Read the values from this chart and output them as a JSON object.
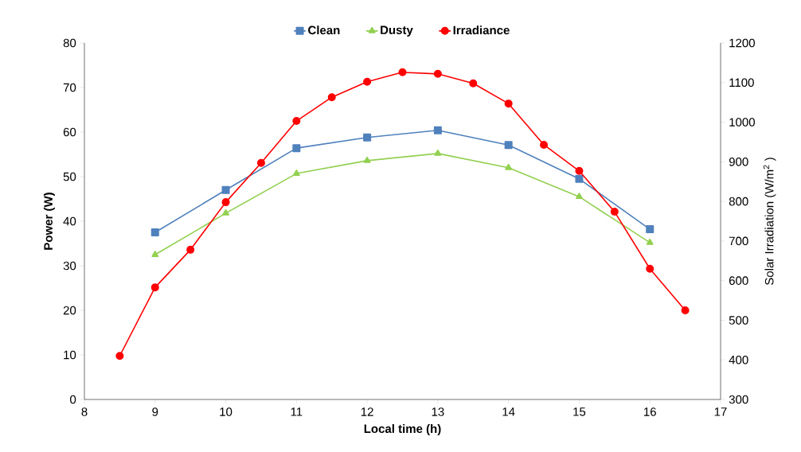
{
  "chart_data": {
    "type": "line",
    "xlabel": "Local time (h)",
    "ylabel": "Power (W)",
    "y2label": "Solar Irradiation (W/m$^{2}$ )",
    "xlim": [
      8,
      17
    ],
    "xticks": [
      8,
      9,
      10,
      11,
      12,
      13,
      14,
      15,
      16,
      17
    ],
    "ylim": [
      0,
      80
    ],
    "yticks": [
      0,
      10,
      20,
      30,
      40,
      50,
      60,
      70,
      80
    ],
    "y2lim": [
      300,
      1200
    ],
    "y2ticks": [
      300,
      400,
      500,
      600,
      700,
      800,
      900,
      1000,
      1100,
      1200
    ],
    "grid": false,
    "legend": "top",
    "line_style": "solid",
    "series": [
      {
        "name": "Clean",
        "color": "#4f81bd",
        "marker": "square",
        "x": [
          9,
          10,
          11,
          12,
          13,
          14,
          15,
          16
        ],
        "values": [
          37.5,
          47,
          56.4,
          58.8,
          60.4,
          57.1,
          49.5,
          38.2
        ]
      },
      {
        "name": "Dusty",
        "color": "#92d050",
        "marker": "triangle",
        "x": [
          9,
          10,
          11,
          12,
          13,
          14,
          15,
          16
        ],
        "values": [
          32.5,
          41.8,
          50.7,
          53.6,
          55.2,
          52,
          45.5,
          35.2
        ]
      },
      {
        "name": "Irradiance",
        "color": "#ff0000",
        "marker": "circle",
        "axis": "y2",
        "x": [
          8.5,
          9,
          9.5,
          10,
          10.5,
          11,
          11.5,
          12,
          12.5,
          13,
          13.5,
          14,
          14.5,
          15,
          15.5,
          16,
          16.5
        ],
        "values": [
          410,
          583,
          678,
          798,
          897,
          1003,
          1063,
          1102,
          1126,
          1122,
          1098,
          1047,
          943,
          877,
          774,
          630,
          525
        ]
      }
    ]
  }
}
